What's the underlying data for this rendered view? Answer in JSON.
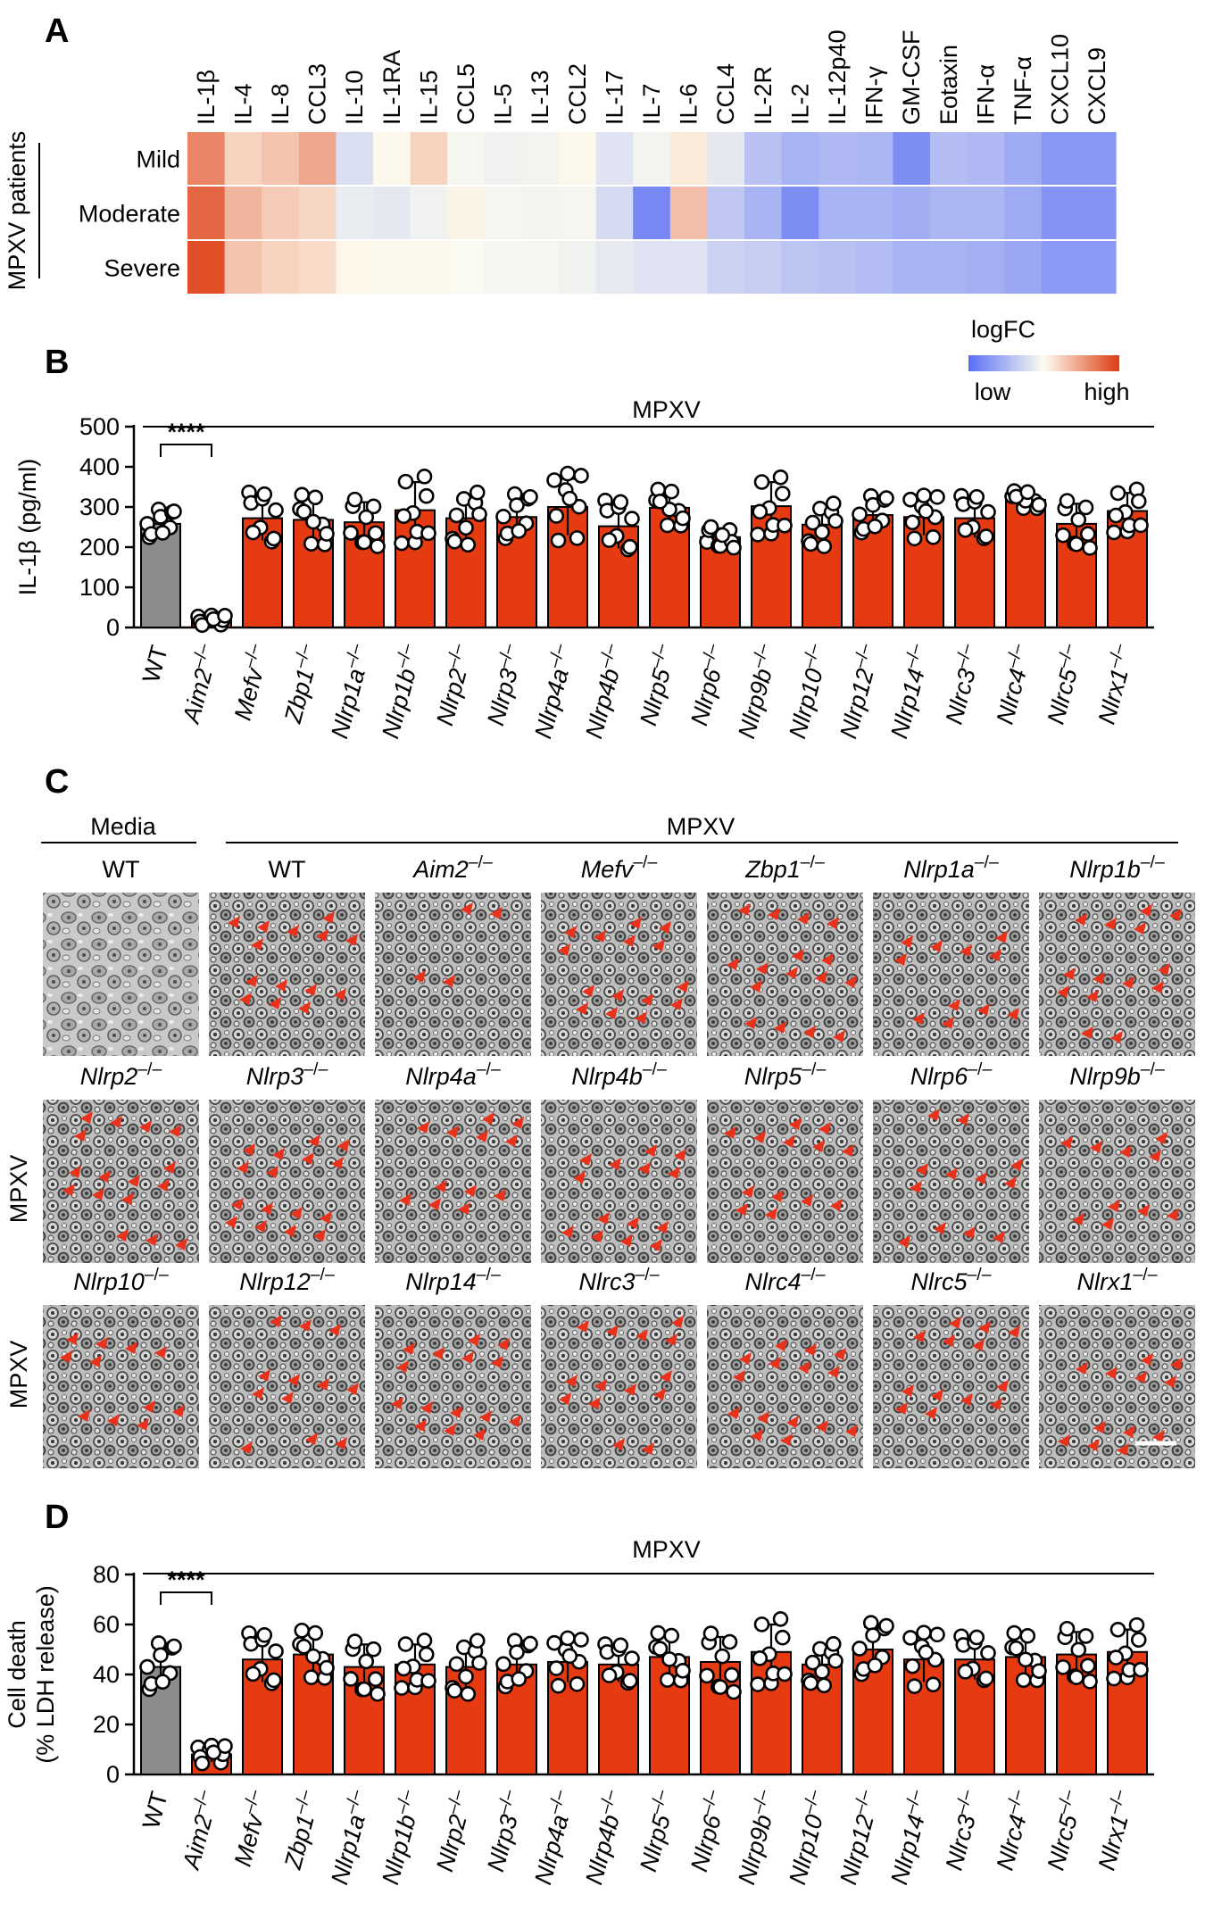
{
  "panels": {
    "A": "A",
    "B": "B",
    "C": "C",
    "D": "D"
  },
  "colors": {
    "low": "#5a6ef5",
    "mid": "#fdfdf0",
    "high": "#dd3c12",
    "wt_bar": "#8c8c8c",
    "ko_bar": "#e53a12",
    "arrow": "#e8321c"
  },
  "heatmap": {
    "group_label": "MPXV patients",
    "rows": [
      "Mild",
      "Moderate",
      "Severe"
    ],
    "cytokines": [
      "IL-1β",
      "IL-4",
      "IL-8",
      "CCL3",
      "IL-10",
      "IL-1RA",
      "IL-15",
      "CCL5",
      "IL-5",
      "IL-13",
      "CCL2",
      "IL-17",
      "IL-7",
      "IL-6",
      "CCL4",
      "IL-2R",
      "IL-2",
      "IL-12p40",
      "IFN-γ",
      "GM-CSF",
      "Eotaxin",
      "IFN-α",
      "TNF-α",
      "CXCL10",
      "CXCL9"
    ],
    "values": [
      [
        0.62,
        0.22,
        0.3,
        0.45,
        -0.22,
        0.02,
        0.22,
        -0.05,
        -0.08,
        -0.06,
        0.02,
        -0.18,
        -0.06,
        0.1,
        -0.15,
        -0.42,
        -0.52,
        -0.48,
        -0.5,
        -0.78,
        -0.45,
        -0.48,
        -0.58,
        -0.72,
        -0.72
      ],
      [
        0.78,
        0.38,
        0.26,
        0.2,
        -0.12,
        -0.15,
        -0.08,
        0.05,
        -0.05,
        -0.06,
        -0.05,
        -0.24,
        -0.82,
        0.32,
        -0.38,
        -0.52,
        -0.78,
        -0.52,
        -0.52,
        -0.56,
        -0.5,
        -0.5,
        -0.58,
        -0.74,
        -0.74
      ],
      [
        0.9,
        0.3,
        0.22,
        0.18,
        0.03,
        0.02,
        0.02,
        -0.02,
        -0.05,
        -0.05,
        -0.08,
        -0.14,
        -0.18,
        -0.18,
        -0.3,
        -0.34,
        -0.4,
        -0.42,
        -0.46,
        -0.52,
        -0.52,
        -0.55,
        -0.6,
        -0.7,
        -0.7
      ]
    ],
    "legend_title": "logFC",
    "legend_low": "low",
    "legend_high": "high"
  },
  "genotypes": [
    "WT",
    "Aim2–/–",
    "Mefv–/–",
    "Zbp1–/–",
    "Nlrp1a–/–",
    "Nlrp1b–/–",
    "Nlrp2–/–",
    "Nlrp3–/–",
    "Nlrp4a–/–",
    "Nlrp4b–/–",
    "Nlrp5–/–",
    "Nlrp6–/–",
    "Nlrp9b–/–",
    "Nlrp10–/–",
    "Nlrp12–/–",
    "Nlrp14–/–",
    "Nlrc3–/–",
    "Nlrc4–/–",
    "Nlrc5–/–",
    "Nlrx1–/–"
  ],
  "chart_data": [
    {
      "type": "bar",
      "panel": "B",
      "title": "MPXV",
      "ylabel": "IL-1β (pg/ml)",
      "ylim": [
        0,
        500
      ],
      "yticks": [
        0,
        100,
        200,
        300,
        400,
        500
      ],
      "categories": [
        "WT",
        "Aim2–/–",
        "Mefv–/–",
        "Zbp1–/–",
        "Nlrp1a–/–",
        "Nlrp1b–/–",
        "Nlrp2–/–",
        "Nlrp3–/–",
        "Nlrp4a–/–",
        "Nlrp4b–/–",
        "Nlrp5–/–",
        "Nlrp6–/–",
        "Nlrp9b–/–",
        "Nlrp10–/–",
        "Nlrp12–/–",
        "Nlrp14–/–",
        "Nlrc3–/–",
        "Nlrc4–/–",
        "Nlrc5–/–",
        "Nlrx1–/–"
      ],
      "values": [
        258,
        18,
        272,
        268,
        262,
        292,
        272,
        275,
        300,
        252,
        298,
        225,
        302,
        256,
        280,
        275,
        272,
        318,
        258,
        290
      ],
      "errors": [
        30,
        10,
        55,
        52,
        50,
        70,
        55,
        48,
        70,
        55,
        38,
        22,
        60,
        45,
        40,
        45,
        48,
        18,
        50,
        45
      ],
      "significance": "****"
    },
    {
      "type": "bar",
      "panel": "D",
      "title": "MPXV",
      "ylabel": "Cell death (% LDH release)",
      "ylabel_lines": [
        "Cell death",
        "(% LDH release)"
      ],
      "ylim": [
        0,
        80
      ],
      "yticks": [
        0,
        20,
        40,
        60,
        80
      ],
      "categories": [
        "WT",
        "Aim2–/–",
        "Mefv–/–",
        "Zbp1–/–",
        "Nlrp1a–/–",
        "Nlrp1b–/–",
        "Nlrp2–/–",
        "Nlrp3–/–",
        "Nlrp4a–/–",
        "Nlrp4b–/–",
        "Nlrp5–/–",
        "Nlrp6–/–",
        "Nlrp9b–/–",
        "Nlrp10–/–",
        "Nlrp12–/–",
        "Nlrp14–/–",
        "Nlrc3–/–",
        "Nlrc4–/–",
        "Nlrc5–/–",
        "Nlrx1–/–"
      ],
      "values": [
        43,
        8,
        46,
        48,
        43,
        44,
        43,
        44,
        45,
        44,
        47,
        45,
        49,
        44,
        50,
        46,
        46,
        47,
        48,
        49
      ],
      "errors": [
        8,
        3,
        9,
        8,
        9,
        8,
        9,
        8,
        8,
        7,
        8,
        10,
        11,
        7,
        9,
        9,
        8,
        8,
        9,
        9
      ],
      "significance": "****"
    }
  ],
  "micrographs": {
    "media_label": "Media",
    "mpxv_label": "MPXV",
    "row_label": "MPXV",
    "rows": [
      [
        "WT",
        "WT",
        "Aim2–/–",
        "Mefv–/–",
        "Zbp1–/–",
        "Nlrp1a–/–",
        "Nlrp1b–/–"
      ],
      [
        "Nlrp2–/–",
        "Nlrp3–/–",
        "Nlrp4a–/–",
        "Nlrp4b–/–",
        "Nlrp5–/–",
        "Nlrp6–/–",
        "Nlrp9b–/–"
      ],
      [
        "Nlrp10–/–",
        "Nlrp12–/–",
        "Nlrp14–/–",
        "Nlrc3–/–",
        "Nlrc4–/–",
        "Nlrc5–/–",
        "Nlrx1–/–"
      ]
    ],
    "arrow_counts": [
      [
        0,
        14,
        4,
        15,
        16,
        11,
        14
      ],
      [
        16,
        16,
        12,
        14,
        13,
        12,
        10
      ],
      [
        11,
        12,
        15,
        14,
        15,
        13,
        12
      ]
    ]
  }
}
